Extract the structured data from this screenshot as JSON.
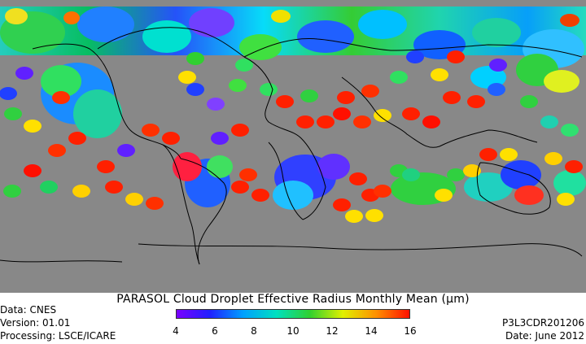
{
  "map": {
    "background_color": "#888888",
    "coastline_color": "#000000"
  },
  "footer": {
    "title": "PARASOL Cloud Droplet Effective Radius Monthly Mean (μm)",
    "data_source": "Data: CNES",
    "version": "Version: 01.01",
    "processing": "Processing: LSCE/ICARE",
    "product_id": "P3L3CDR201206",
    "date": "Date: June 2012"
  },
  "colorbar": {
    "min": 4,
    "max": 16,
    "tick_labels": [
      "4",
      "6",
      "8",
      "10",
      "12",
      "14",
      "16"
    ],
    "colors": [
      "#7a00ff",
      "#2020ff",
      "#00a0ff",
      "#00e0c0",
      "#30d030",
      "#e0f000",
      "#ff9000",
      "#ff1000"
    ]
  }
}
